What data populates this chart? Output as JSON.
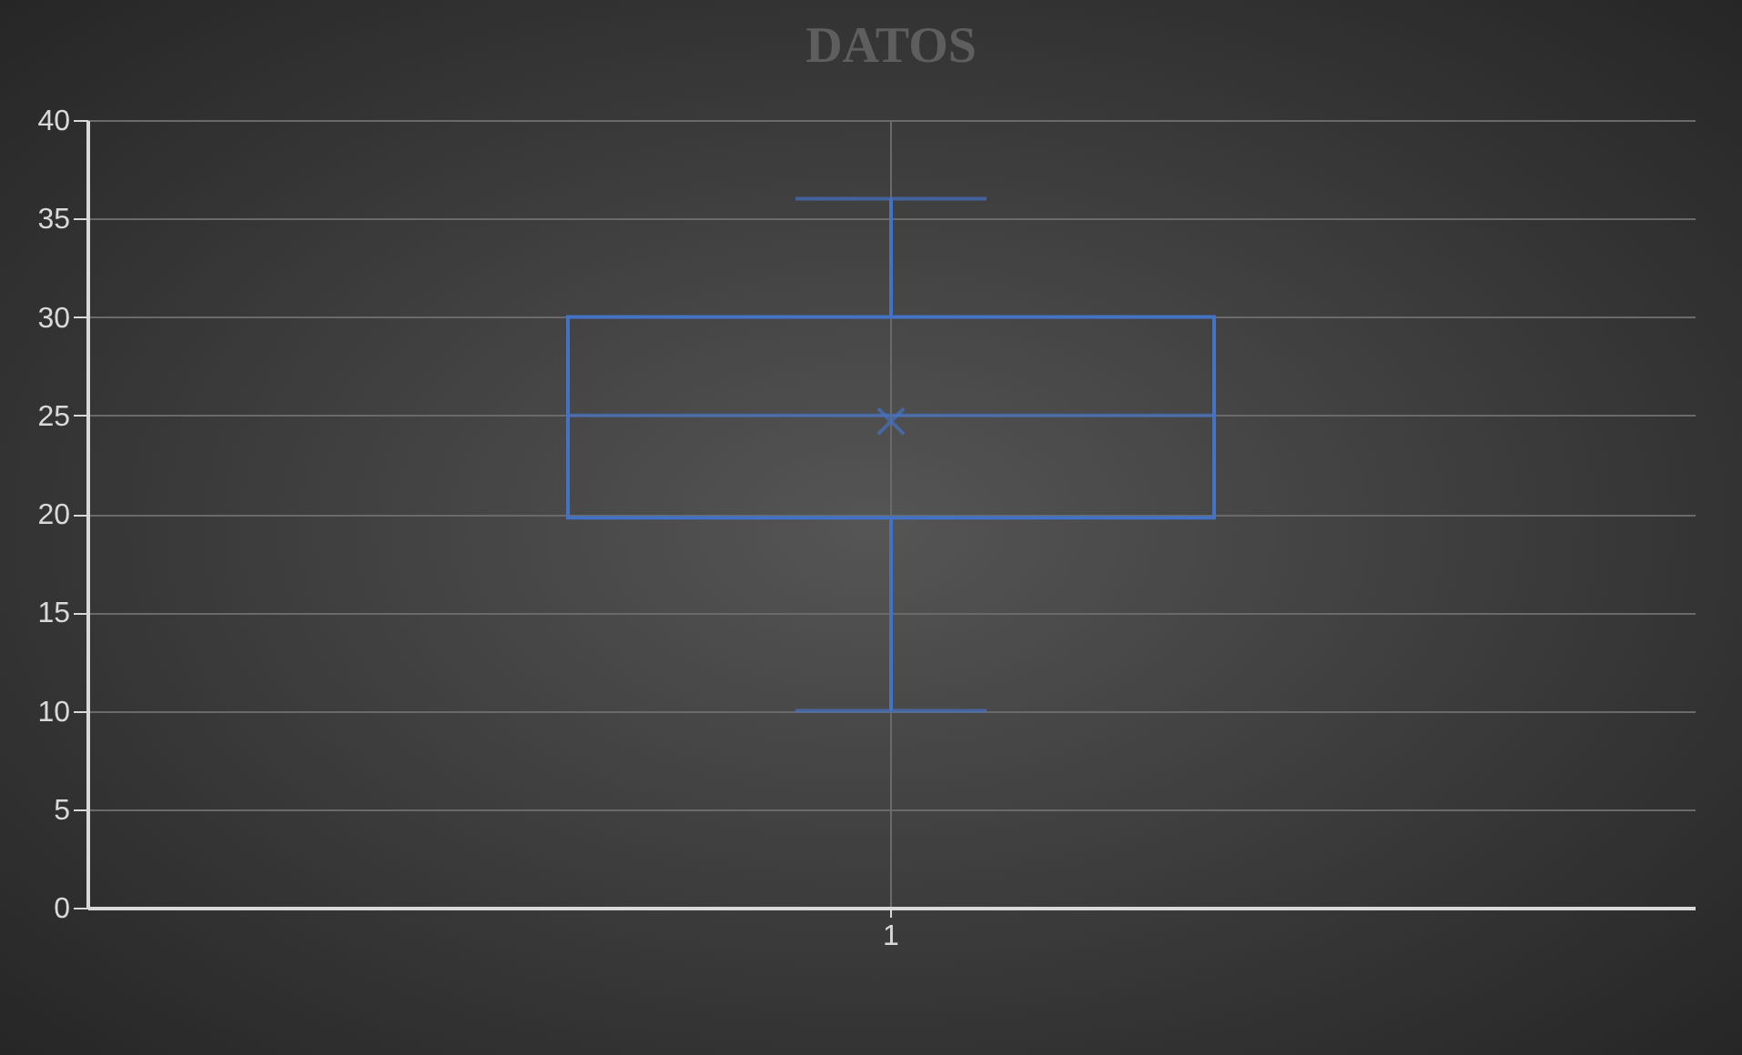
{
  "chart_data": {
    "type": "box",
    "title": "DATOS",
    "categories": [
      "1"
    ],
    "series": [
      {
        "color": "#4472c4",
        "boxes": [
          {
            "low": 10,
            "q1": 19.8,
            "median": 25,
            "q3": 30,
            "high": 36,
            "mean": 24.7
          }
        ]
      }
    ],
    "ylim": [
      0,
      40
    ],
    "yticks": [
      0,
      5,
      10,
      15,
      20,
      25,
      30,
      35,
      40
    ],
    "grid": true
  }
}
